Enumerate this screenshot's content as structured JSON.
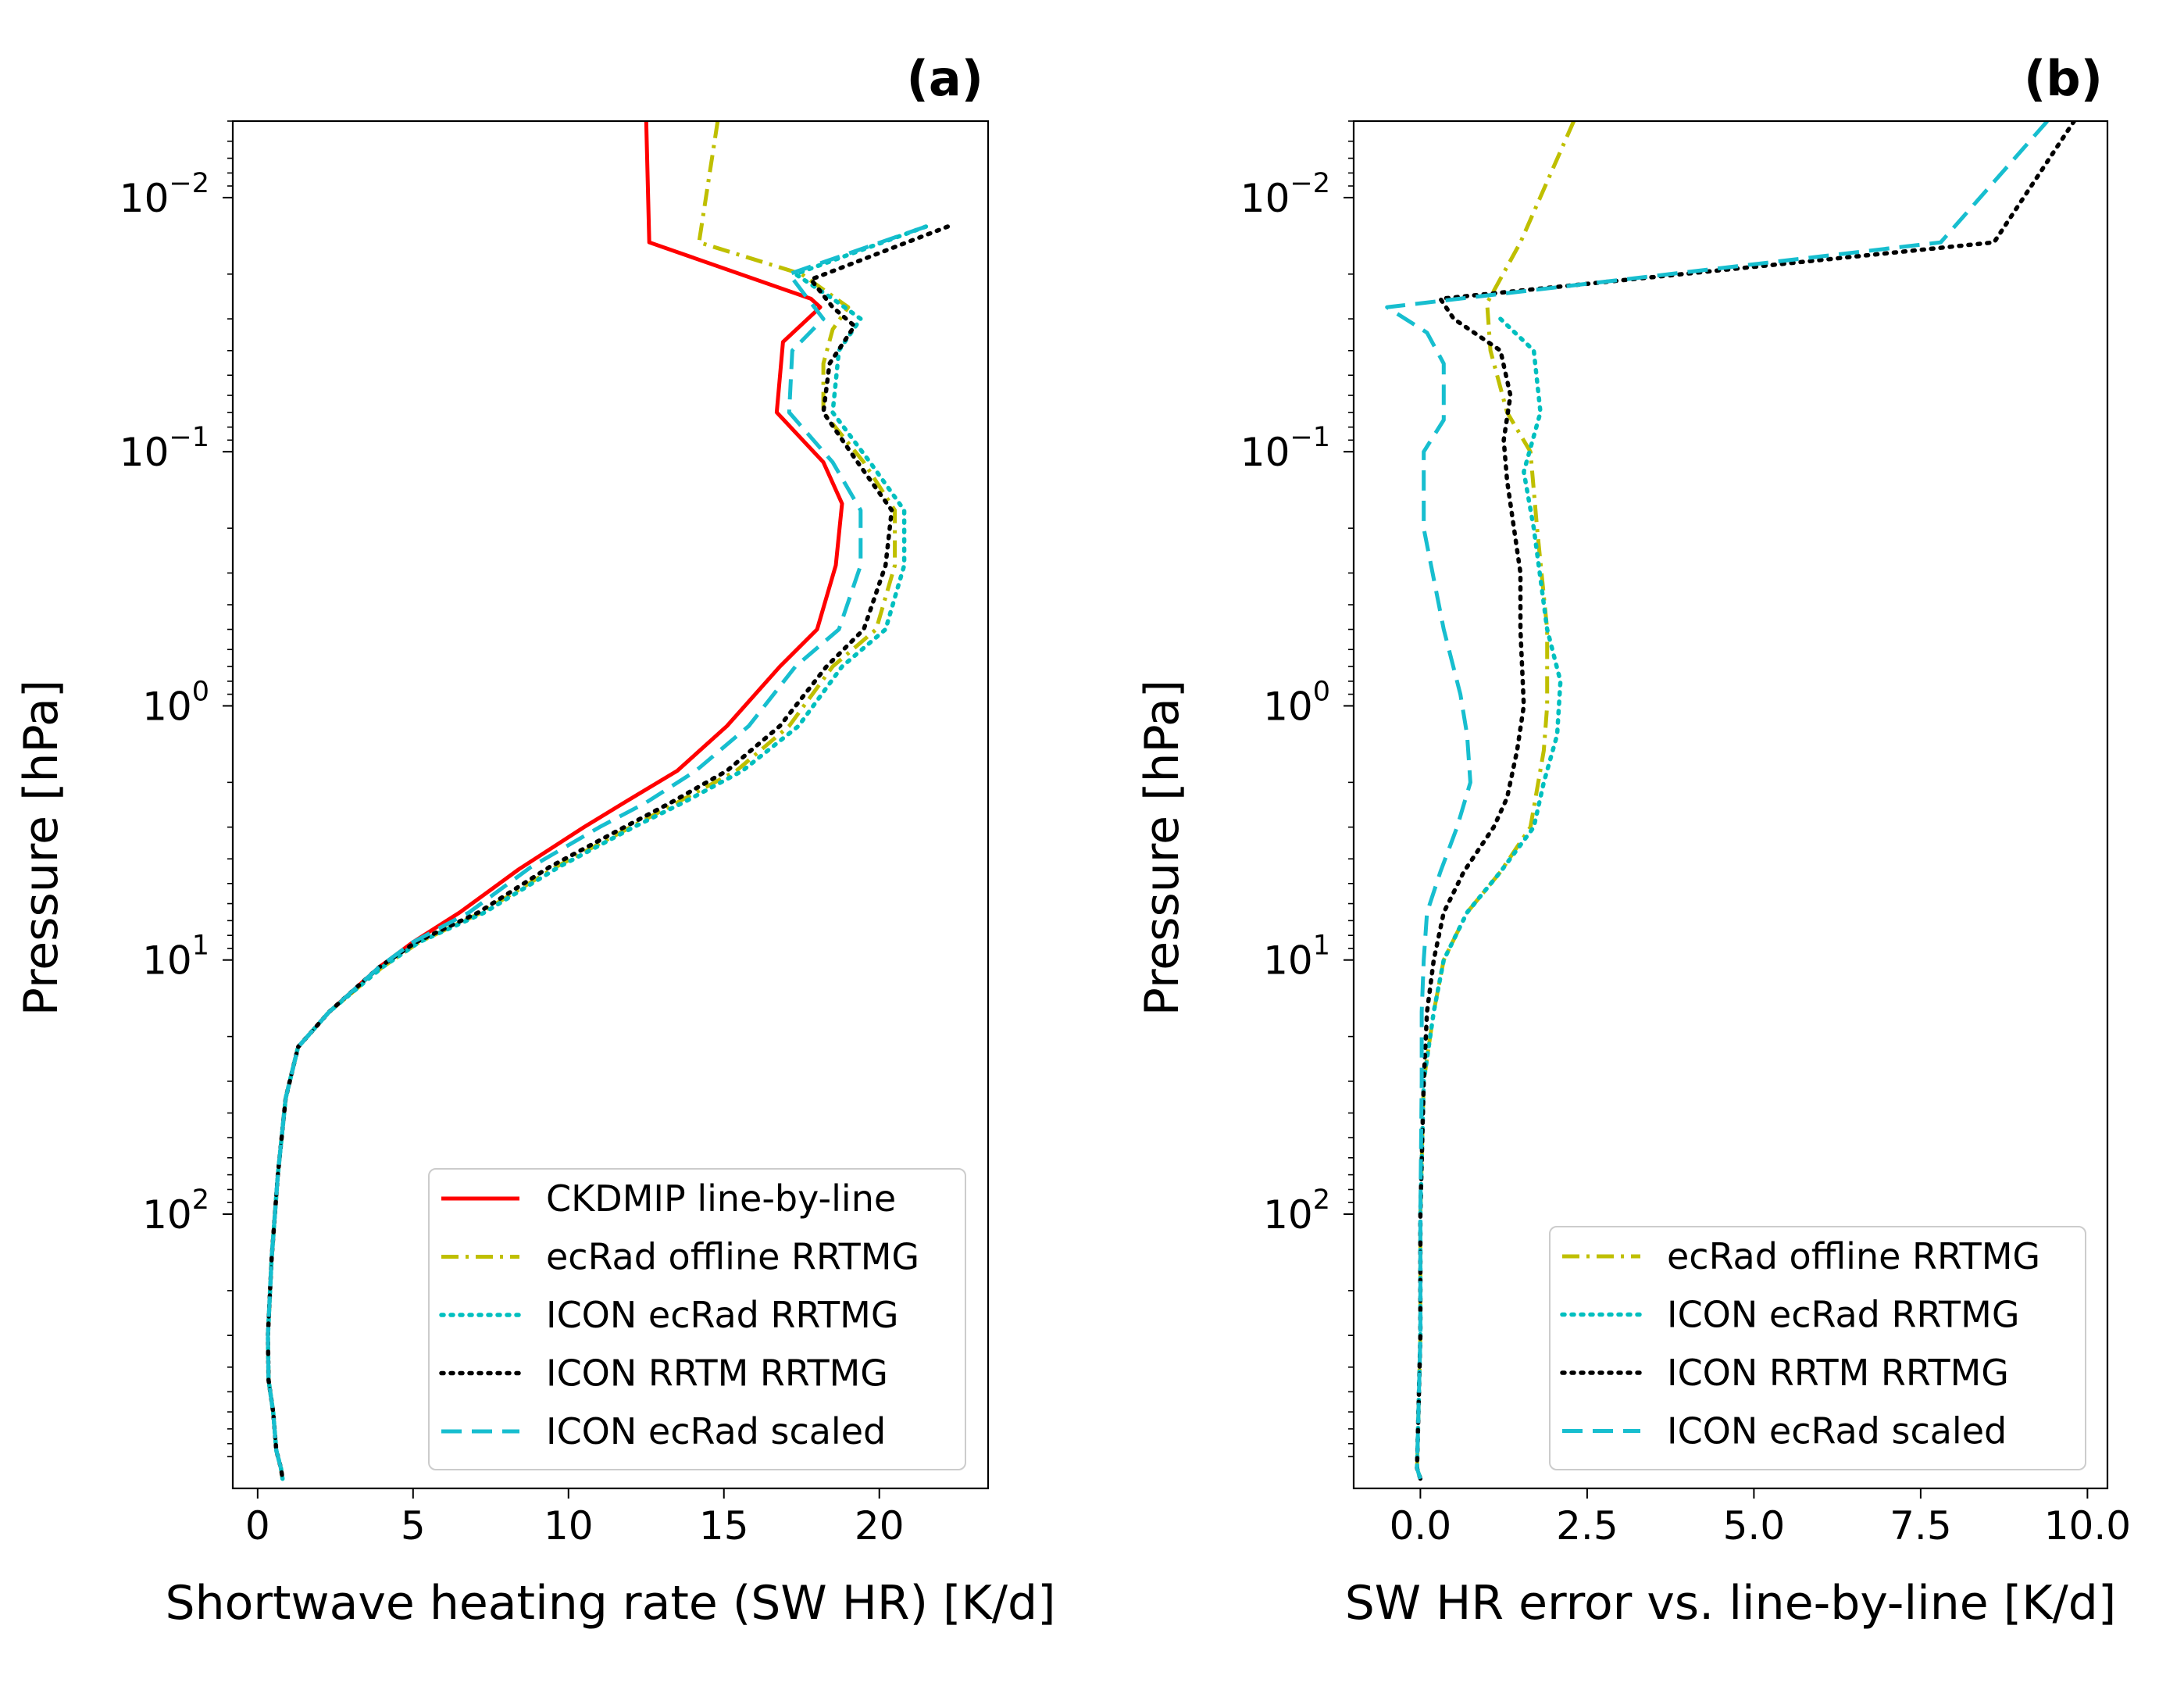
{
  "chart_data": [
    {
      "type": "line",
      "panel_label": "(a)",
      "xlabel": "Shortwave heating rate (SW HR) [K/d]",
      "ylabel": "Pressure [hPa]",
      "xlim": [
        -0.8,
        23.5
      ],
      "ylim": [
        1200,
        0.005
      ],
      "yscale": "log",
      "xticks": [
        0,
        5,
        10,
        15,
        20
      ],
      "xtick_labels": [
        "0",
        "5",
        "10",
        "15",
        "20"
      ],
      "yticks": [
        0.01,
        0.1,
        1,
        10,
        100
      ],
      "ytick_labels": [
        {
          "base": "10",
          "exp": "−2"
        },
        {
          "base": "10",
          "exp": "−1"
        },
        {
          "base": "10",
          "exp": "0"
        },
        {
          "base": "10",
          "exp": "1"
        },
        {
          "base": "10",
          "exp": "2"
        }
      ],
      "legend_position": "lower right",
      "series": [
        {
          "name": "CKDMIP line-by-line",
          "color": "#ff0000",
          "dash": "solid",
          "points": [
            [
              12.5,
              0.005
            ],
            [
              12.6,
              0.015
            ],
            [
              17.8,
              0.025
            ],
            [
              18.1,
              0.027
            ],
            [
              16.9,
              0.037
            ],
            [
              16.7,
              0.07
            ],
            [
              18.2,
              0.11
            ],
            [
              18.8,
              0.16
            ],
            [
              18.6,
              0.28
            ],
            [
              18,
              0.5
            ],
            [
              16.8,
              0.7
            ],
            [
              15.1,
              1.2
            ],
            [
              13.5,
              1.8
            ],
            [
              11.8,
              2.4
            ],
            [
              10.5,
              3
            ],
            [
              8.4,
              4.4
            ],
            [
              6.5,
              6.5
            ],
            [
              5,
              8.5
            ],
            [
              3.9,
              10.7
            ],
            [
              2.3,
              16
            ],
            [
              1.3,
              22
            ],
            [
              0.9,
              35
            ],
            [
              0.65,
              70
            ],
            [
              0.45,
              150
            ],
            [
              0.33,
              300
            ],
            [
              0.35,
              450
            ],
            [
              0.5,
              600
            ],
            [
              0.6,
              850
            ],
            [
              0.75,
              1000
            ],
            [
              0.8,
              1100
            ]
          ]
        },
        {
          "name": "ecRad offline RRTMG",
          "color": "#bfbf00",
          "dash": "dashdot",
          "points": [
            [
              14.8,
              0.005
            ],
            [
              14.2,
              0.015
            ],
            [
              17.5,
              0.02
            ],
            [
              19,
              0.027
            ],
            [
              18.5,
              0.033
            ],
            [
              18.2,
              0.045
            ],
            [
              18.2,
              0.07
            ],
            [
              19.5,
              0.11
            ],
            [
              20.5,
              0.17
            ],
            [
              20.5,
              0.28
            ],
            [
              19.9,
              0.5
            ],
            [
              18.5,
              0.7
            ],
            [
              17.1,
              1.2
            ],
            [
              15.4,
              1.8
            ],
            [
              13.5,
              2.4
            ],
            [
              12,
              3
            ],
            [
              9.6,
              4.3
            ],
            [
              7.2,
              6.5
            ],
            [
              5.2,
              8.5
            ],
            [
              4,
              10.7
            ],
            [
              2.3,
              16
            ],
            [
              1.3,
              22
            ],
            [
              0.9,
              35
            ],
            [
              0.65,
              70
            ],
            [
              0.45,
              150
            ],
            [
              0.33,
              300
            ],
            [
              0.35,
              450
            ],
            [
              0.5,
              600
            ],
            [
              0.6,
              850
            ],
            [
              0.75,
              1000
            ],
            [
              0.8,
              1100
            ]
          ]
        },
        {
          "name": "ICON ecRad RRTMG",
          "color": "#00bfbf",
          "dash": "dotted",
          "points": [
            [
              21.5,
              0.013
            ],
            [
              17.3,
              0.02
            ],
            [
              18.5,
              0.025
            ],
            [
              19.4,
              0.03
            ],
            [
              18.7,
              0.04
            ],
            [
              18.5,
              0.07
            ],
            [
              19.7,
              0.11
            ],
            [
              20.8,
              0.17
            ],
            [
              20.8,
              0.28
            ],
            [
              20.2,
              0.5
            ],
            [
              18.8,
              0.7
            ],
            [
              17.4,
              1.2
            ],
            [
              15.6,
              1.8
            ],
            [
              13.7,
              2.4
            ],
            [
              12.1,
              3
            ],
            [
              9.7,
              4.3
            ],
            [
              7.3,
              6.5
            ],
            [
              5.2,
              8.5
            ],
            [
              4,
              10.7
            ],
            [
              2.3,
              16
            ],
            [
              1.3,
              22
            ],
            [
              0.9,
              35
            ],
            [
              0.65,
              70
            ],
            [
              0.45,
              150
            ],
            [
              0.33,
              300
            ],
            [
              0.35,
              450
            ],
            [
              0.5,
              600
            ],
            [
              0.6,
              850
            ],
            [
              0.75,
              1000
            ],
            [
              0.8,
              1100
            ]
          ]
        },
        {
          "name": "ICON RRTM RRTMG",
          "color": "#000000",
          "dash": "dotted",
          "points": [
            [
              22.2,
              0.013
            ],
            [
              17.8,
              0.021
            ],
            [
              18.5,
              0.027
            ],
            [
              19.2,
              0.032
            ],
            [
              18.4,
              0.045
            ],
            [
              18.2,
              0.07
            ],
            [
              19.3,
              0.11
            ],
            [
              20.4,
              0.17
            ],
            [
              20.2,
              0.28
            ],
            [
              19.5,
              0.5
            ],
            [
              18.3,
              0.7
            ],
            [
              16.8,
              1.2
            ],
            [
              15.1,
              1.8
            ],
            [
              13.3,
              2.4
            ],
            [
              11.8,
              3
            ],
            [
              9.4,
              4.3
            ],
            [
              7.1,
              6.5
            ],
            [
              5.1,
              8.5
            ],
            [
              3.9,
              10.7
            ],
            [
              2.3,
              16
            ],
            [
              1.3,
              22
            ],
            [
              0.9,
              35
            ],
            [
              0.65,
              70
            ],
            [
              0.45,
              150
            ],
            [
              0.33,
              300
            ],
            [
              0.35,
              450
            ],
            [
              0.5,
              600
            ],
            [
              0.6,
              850
            ],
            [
              0.75,
              1000
            ],
            [
              0.8,
              1100
            ]
          ]
        },
        {
          "name": "ICON ecRad scaled",
          "color": "#17becf",
          "dash": "dashed",
          "points": [
            [
              21.5,
              0.013
            ],
            [
              17.1,
              0.02
            ],
            [
              17.7,
              0.025
            ],
            [
              18.2,
              0.03
            ],
            [
              17.2,
              0.04
            ],
            [
              17.1,
              0.07
            ],
            [
              18.5,
              0.11
            ],
            [
              19.4,
              0.17
            ],
            [
              19.4,
              0.28
            ],
            [
              18.7,
              0.5
            ],
            [
              17.3,
              0.7
            ],
            [
              15.8,
              1.2
            ],
            [
              14.1,
              1.8
            ],
            [
              12.5,
              2.4
            ],
            [
              11,
              3
            ],
            [
              8.8,
              4.3
            ],
            [
              6.8,
              6.5
            ],
            [
              5,
              8.5
            ],
            [
              3.9,
              10.7
            ],
            [
              2.3,
              16
            ],
            [
              1.3,
              22
            ],
            [
              0.9,
              35
            ],
            [
              0.65,
              70
            ],
            [
              0.45,
              150
            ],
            [
              0.33,
              300
            ],
            [
              0.35,
              450
            ],
            [
              0.5,
              600
            ],
            [
              0.6,
              850
            ],
            [
              0.75,
              1000
            ],
            [
              0.8,
              1100
            ]
          ]
        }
      ]
    },
    {
      "type": "line",
      "panel_label": "(b)",
      "xlabel": "SW HR error vs. line-by-line [K/d]",
      "ylabel": "Pressure [hPa]",
      "xlim": [
        -1,
        10.3
      ],
      "ylim": [
        1200,
        0.005
      ],
      "yscale": "log",
      "xticks": [
        0,
        2.5,
        5,
        7.5,
        10
      ],
      "xtick_labels": [
        "0.0",
        "2.5",
        "5.0",
        "7.5",
        "10.0"
      ],
      "yticks": [
        0.01,
        0.1,
        1,
        10,
        100
      ],
      "ytick_labels": [
        {
          "base": "10",
          "exp": "−2"
        },
        {
          "base": "10",
          "exp": "−1"
        },
        {
          "base": "10",
          "exp": "0"
        },
        {
          "base": "10",
          "exp": "1"
        },
        {
          "base": "10",
          "exp": "2"
        }
      ],
      "legend_position": "lower right",
      "series": [
        {
          "name": "ecRad offline RRTMG",
          "color": "#bfbf00",
          "dash": "dashdot",
          "points": [
            [
              2.3,
              0.005
            ],
            [
              1.5,
              0.015
            ],
            [
              1,
              0.026
            ],
            [
              1.05,
              0.04
            ],
            [
              1.3,
              0.07
            ],
            [
              1.65,
              0.1
            ],
            [
              1.75,
              0.2
            ],
            [
              1.9,
              0.5
            ],
            [
              1.9,
              1
            ],
            [
              1.85,
              1.5
            ],
            [
              1.65,
              3
            ],
            [
              1.2,
              4.5
            ],
            [
              0.7,
              6.5
            ],
            [
              0.35,
              10
            ],
            [
              0.2,
              16
            ],
            [
              0.05,
              30
            ],
            [
              0,
              100
            ],
            [
              0,
              300
            ],
            [
              -0.05,
              1000
            ],
            [
              0,
              1100
            ]
          ]
        },
        {
          "name": "ICON ecRad RRTMG",
          "color": "#00bfbf",
          "dash": "dotted",
          "points": [
            [
              1.2,
              0.03
            ],
            [
              1.7,
              0.04
            ],
            [
              1.8,
              0.07
            ],
            [
              1.55,
              0.12
            ],
            [
              1.7,
              0.2
            ],
            [
              1.9,
              0.5
            ],
            [
              2.1,
              0.8
            ],
            [
              2.05,
              1.3
            ],
            [
              1.85,
              2
            ],
            [
              1.7,
              3
            ],
            [
              1.2,
              4.5
            ],
            [
              0.7,
              6.5
            ],
            [
              0.35,
              10
            ],
            [
              0.2,
              16
            ],
            [
              0.05,
              30
            ],
            [
              0,
              100
            ],
            [
              0,
              300
            ],
            [
              -0.05,
              1000
            ],
            [
              0,
              1100
            ]
          ]
        },
        {
          "name": "ICON RRTM RRTMG",
          "color": "#000000",
          "dash": "dotted",
          "points": [
            [
              9.8,
              0.005
            ],
            [
              8.6,
              0.015
            ],
            [
              0.3,
              0.025
            ],
            [
              0.5,
              0.03
            ],
            [
              1.2,
              0.04
            ],
            [
              1.35,
              0.06
            ],
            [
              1.25,
              0.09
            ],
            [
              1.3,
              0.13
            ],
            [
              1.5,
              0.3
            ],
            [
              1.5,
              0.5
            ],
            [
              1.55,
              1
            ],
            [
              1.45,
              1.5
            ],
            [
              1.3,
              2.3
            ],
            [
              1.1,
              3
            ],
            [
              0.65,
              4.5
            ],
            [
              0.35,
              6.5
            ],
            [
              0.2,
              10
            ],
            [
              0.1,
              16
            ],
            [
              0.05,
              30
            ],
            [
              0,
              100
            ],
            [
              0,
              300
            ],
            [
              -0.05,
              1000
            ],
            [
              0,
              1100
            ]
          ]
        },
        {
          "name": "ICON ecRad scaled",
          "color": "#17becf",
          "dash": "dashed",
          "points": [
            [
              9.4,
              0.005
            ],
            [
              7.8,
              0.015
            ],
            [
              -0.5,
              0.027
            ],
            [
              0.1,
              0.034
            ],
            [
              0.35,
              0.045
            ],
            [
              0.35,
              0.075
            ],
            [
              0.05,
              0.1
            ],
            [
              0.05,
              0.2
            ],
            [
              0.35,
              0.5
            ],
            [
              0.6,
              0.9
            ],
            [
              0.7,
              1.3
            ],
            [
              0.75,
              2
            ],
            [
              0.55,
              3
            ],
            [
              0.3,
              4.5
            ],
            [
              0.1,
              6.5
            ],
            [
              0.05,
              10
            ],
            [
              0.02,
              16
            ],
            [
              0.02,
              30
            ],
            [
              0,
              100
            ],
            [
              0,
              300
            ],
            [
              -0.05,
              1000
            ],
            [
              0,
              1100
            ]
          ]
        }
      ]
    }
  ]
}
